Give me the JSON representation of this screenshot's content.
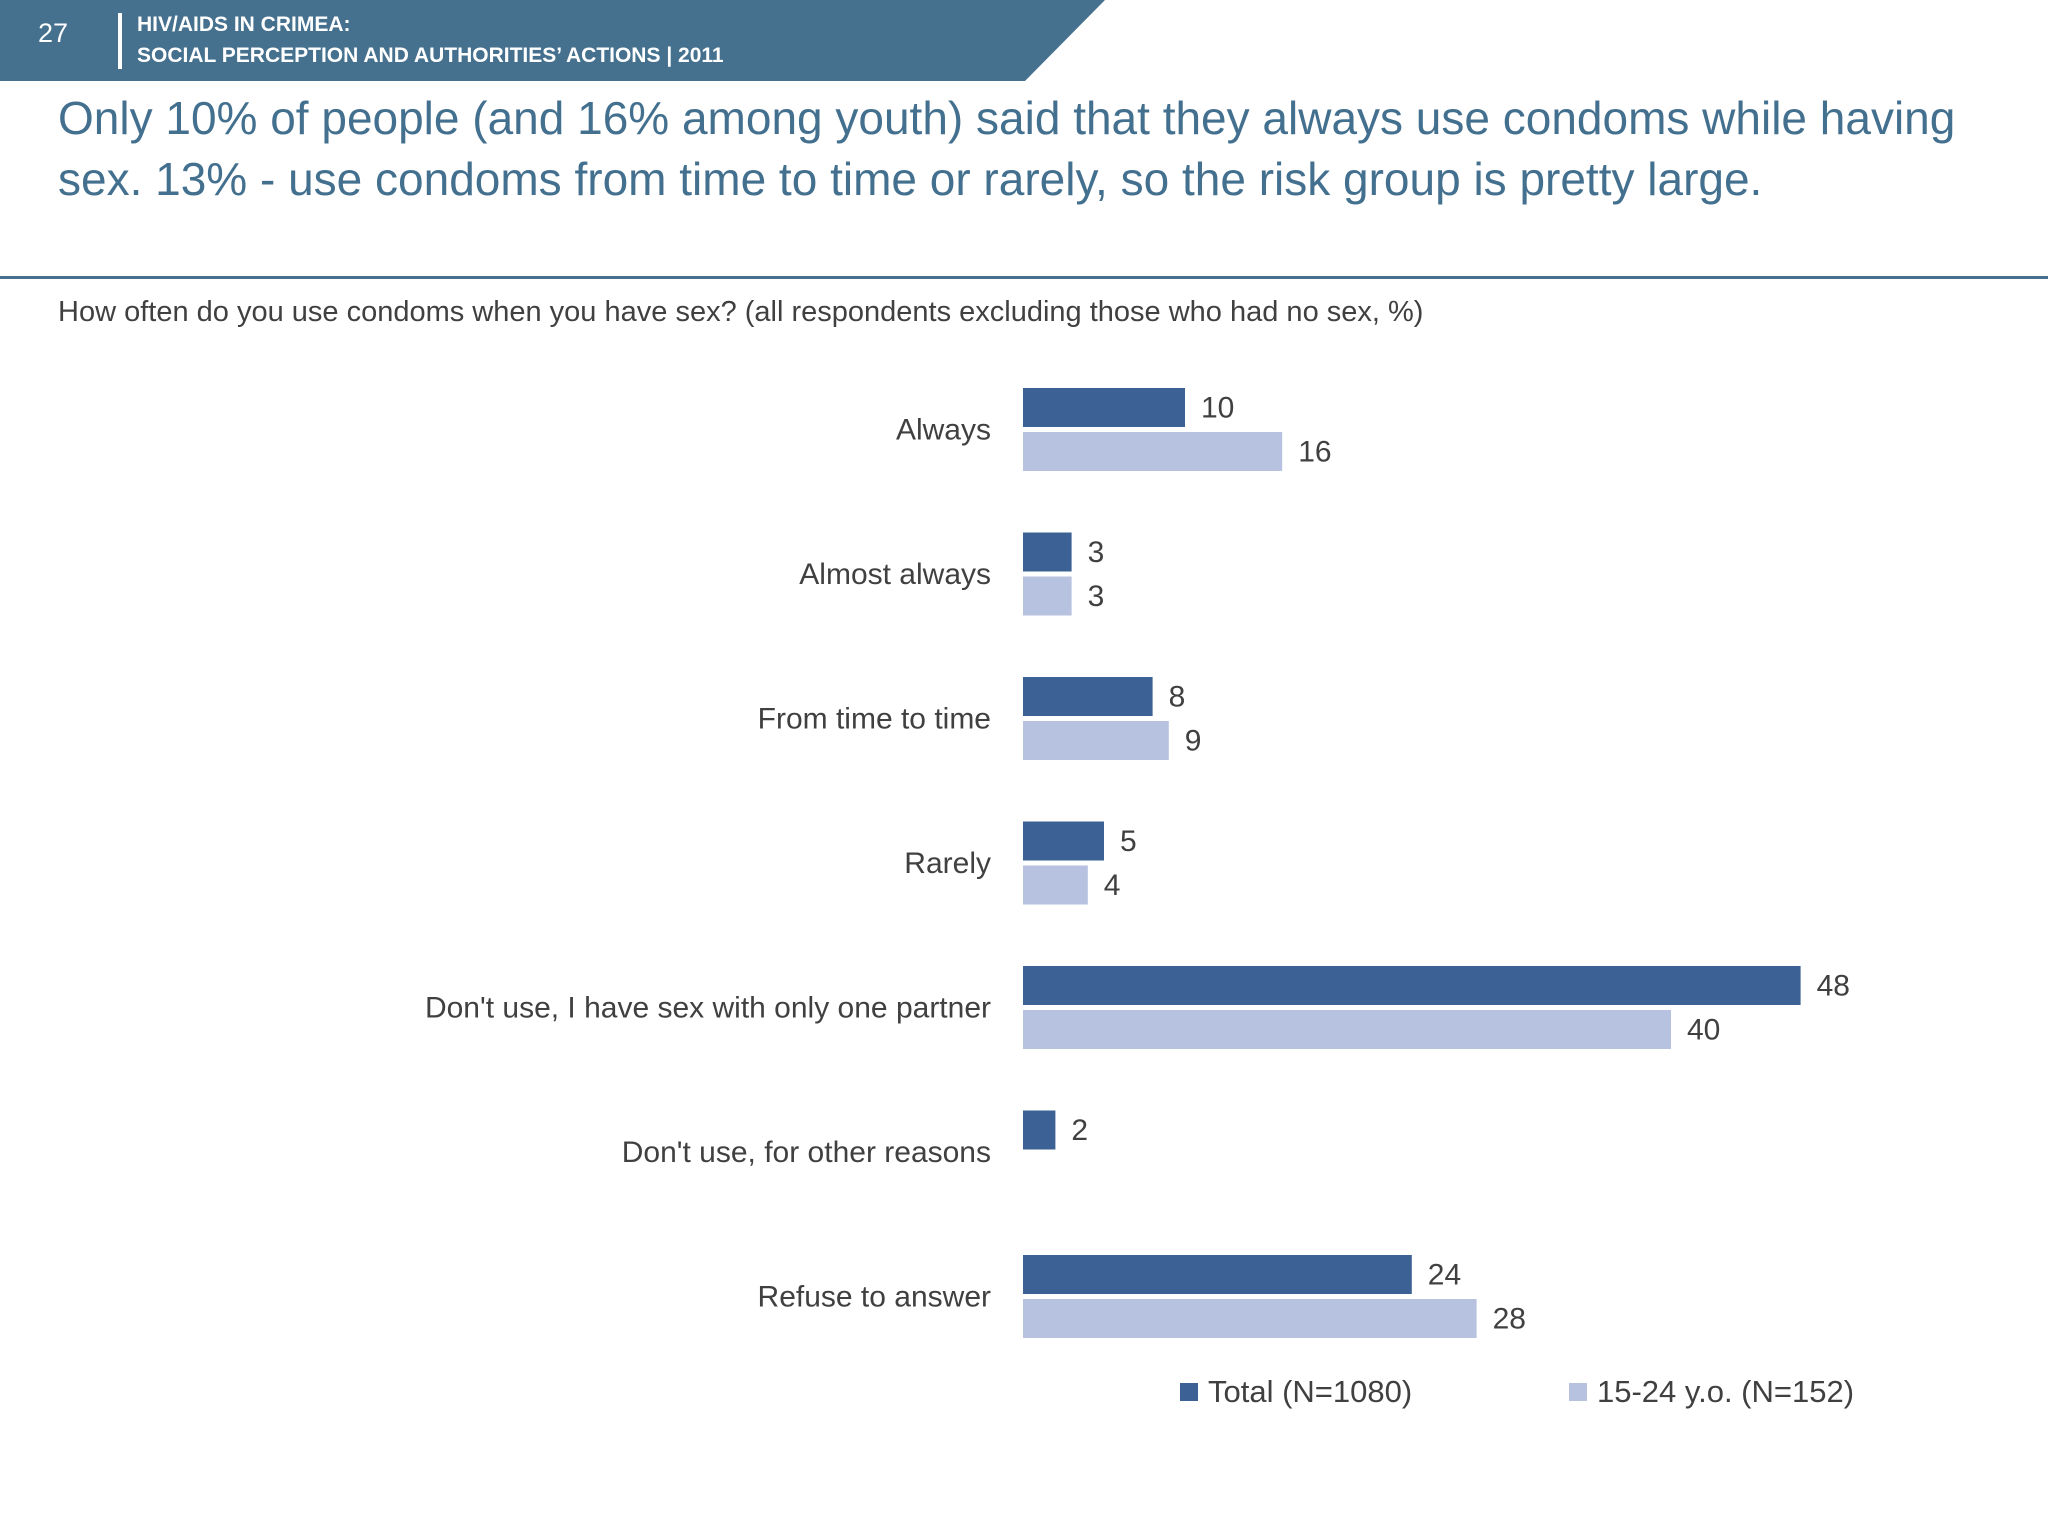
{
  "header": {
    "page_number": "27",
    "line1": "HIV/AIDS IN CRIMEA:",
    "line2": "SOCIAL PERCEPTION AND AUTHORITIES’ ACTIONS  |  2011"
  },
  "headline": "Only 10% of people (and 16% among youth) said that they always use condoms while having sex. 13% - use condoms from time to time or rarely, so the risk group is pretty large.",
  "question": "How often do you use condoms when you have sex? (all respondents excluding those who had no sex, %)",
  "colors": {
    "header_bg": "#45718f",
    "title": "#44708f",
    "series_total": "#3b6195",
    "series_youth": "#b6c2df"
  },
  "chart_data": {
    "type": "bar",
    "orientation": "horizontal",
    "categories": [
      "Always",
      "Almost always",
      "From time to time",
      "Rarely",
      "Don't use, I have sex with only one partner",
      "Don't use, for other reasons",
      "Refuse to answer"
    ],
    "series": [
      {
        "name": "Total (N=1080)",
        "values": [
          10,
          3,
          8,
          5,
          48,
          2,
          24
        ]
      },
      {
        "name": "15-24 y.o. (N=152)",
        "values": [
          16,
          3,
          9,
          4,
          40,
          null,
          28
        ]
      }
    ],
    "data_labels": true,
    "legend_position": "bottom",
    "grid": false,
    "xlim": [
      0,
      50
    ]
  }
}
